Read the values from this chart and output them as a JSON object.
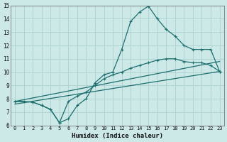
{
  "xlabel": "Humidex (Indice chaleur)",
  "xlim": [
    -0.5,
    23.5
  ],
  "ylim": [
    6,
    15
  ],
  "xticks": [
    0,
    1,
    2,
    3,
    4,
    5,
    6,
    7,
    8,
    9,
    10,
    11,
    12,
    13,
    14,
    15,
    16,
    17,
    18,
    19,
    20,
    21,
    22,
    23
  ],
  "yticks": [
    6,
    7,
    8,
    9,
    10,
    11,
    12,
    13,
    14,
    15
  ],
  "bg_color": "#cce9e8",
  "grid_color": "#afd4d2",
  "line_color": "#1e6e6e",
  "curve1_x": [
    0,
    1,
    2,
    3,
    4,
    5,
    6,
    7,
    8,
    9,
    10,
    11,
    12,
    13,
    14,
    15,
    16,
    17,
    18,
    19,
    20,
    21,
    22,
    23
  ],
  "curve1_y": [
    7.8,
    7.8,
    7.75,
    7.5,
    7.2,
    6.2,
    6.5,
    7.5,
    8.0,
    9.2,
    9.8,
    10.0,
    11.7,
    13.8,
    14.5,
    14.95,
    14.0,
    13.2,
    12.7,
    12.0,
    11.7,
    11.7,
    11.7,
    10.05
  ],
  "curve2_x": [
    0,
    2,
    3,
    4,
    5,
    6,
    7,
    8,
    9,
    10,
    11,
    12,
    13,
    14,
    15,
    16,
    17,
    18,
    19,
    20,
    21,
    22,
    23
  ],
  "curve2_y": [
    7.8,
    7.75,
    7.5,
    7.2,
    6.2,
    7.8,
    8.2,
    8.5,
    9.0,
    9.5,
    9.8,
    10.0,
    10.3,
    10.5,
    10.7,
    10.9,
    11.0,
    11.0,
    10.8,
    10.7,
    10.7,
    10.5,
    10.05
  ],
  "trend1_x": [
    0,
    23
  ],
  "trend1_y": [
    7.8,
    10.8
  ],
  "trend2_x": [
    0,
    23
  ],
  "trend2_y": [
    7.6,
    10.05
  ]
}
